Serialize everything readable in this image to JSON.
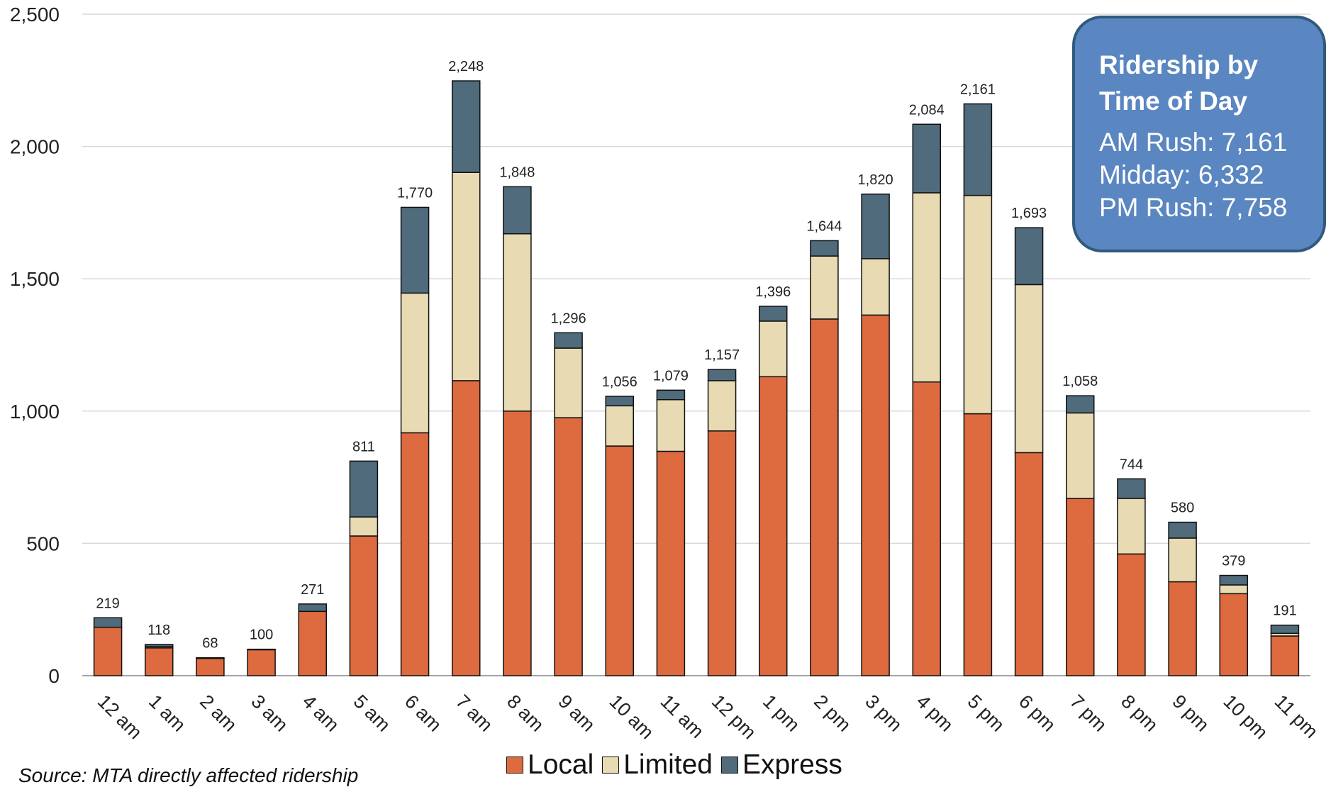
{
  "chart_data": {
    "type": "bar",
    "stacked": true,
    "categories": [
      "12 am",
      "1 am",
      "2 am",
      "3 am",
      "4 am",
      "5 am",
      "6 am",
      "7 am",
      "8 am",
      "9 am",
      "10 am",
      "11 am",
      "12 pm",
      "1 pm",
      "2 pm",
      "3 pm",
      "4 pm",
      "5 pm",
      "6 pm",
      "7 pm",
      "8 pm",
      "9 pm",
      "10 pm",
      "11 pm"
    ],
    "series": [
      {
        "name": "Local",
        "color": "#dd6b3f",
        "values": [
          183,
          105,
          65,
          98,
          243,
          528,
          918,
          1115,
          1000,
          975,
          868,
          848,
          925,
          1130,
          1348,
          1363,
          1110,
          990,
          843,
          670,
          460,
          355,
          310,
          150
        ]
      },
      {
        "name": "Limited",
        "color": "#e8dbb4",
        "values": [
          0,
          5,
          0,
          0,
          0,
          72,
          528,
          787,
          670,
          263,
          152,
          195,
          190,
          210,
          238,
          213,
          715,
          825,
          635,
          323,
          210,
          165,
          33,
          10
        ]
      },
      {
        "name": "Express",
        "color": "#4f6b7c",
        "values": [
          36,
          8,
          3,
          2,
          28,
          211,
          324,
          346,
          178,
          58,
          36,
          36,
          42,
          56,
          58,
          244,
          259,
          346,
          215,
          65,
          74,
          60,
          36,
          31
        ]
      }
    ],
    "totals": [
      "219",
      "118",
      "68",
      "100",
      "271",
      "811",
      "1,770",
      "2,248",
      "1,848",
      "1,296",
      "1,056",
      "1,079",
      "1,157",
      "1,396",
      "1,644",
      "1,820",
      "2,084",
      "2,161",
      "1,693",
      "1,058",
      "744",
      "580",
      "379",
      "191"
    ],
    "ylim": [
      0,
      2500
    ],
    "yticks": [
      "0",
      "500",
      "1,000",
      "1,500",
      "2,000",
      "2,500"
    ],
    "grid": true,
    "legend_position": "bottom"
  },
  "callout": {
    "title_line1": "Ridership by",
    "title_line2": "Time of Day",
    "am_rush": "AM Rush: 7,161",
    "midday": "Midday: 6,332",
    "pm_rush": "PM Rush: 7,758"
  },
  "legend": {
    "local": "Local",
    "limited": "Limited",
    "express": "Express"
  },
  "source": "Source: MTA directly affected ridership"
}
